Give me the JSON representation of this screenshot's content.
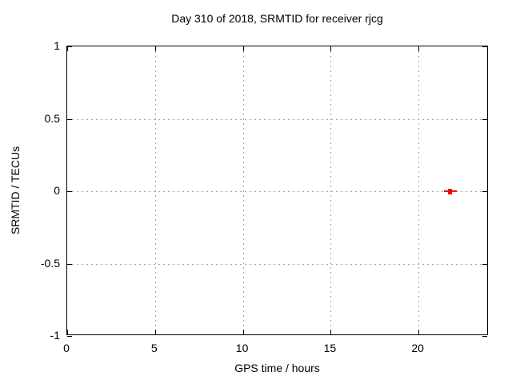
{
  "chart_data": {
    "type": "scatter",
    "title": "Day 310 of 2018, SRMTID for receiver rjcg",
    "xlabel": "GPS time / hours",
    "ylabel": "SRMTID / TECUs",
    "xlim": [
      0,
      24
    ],
    "ylim": [
      -1,
      1
    ],
    "x_ticks": [
      0,
      5,
      10,
      15,
      20
    ],
    "x_tick_labels": [
      "0",
      "5",
      "10",
      "15",
      "20"
    ],
    "y_ticks": [
      1,
      0.5,
      0,
      -0.5,
      -1
    ],
    "y_tick_labels": [
      "1",
      "0.5",
      "0",
      "-0.5",
      "-1"
    ],
    "grid": true,
    "legend_position": "none",
    "series": [
      {
        "name": "SRMTID",
        "marker": "filled-square-with-horizontal-bar",
        "color": "#ff0000",
        "points": [
          {
            "x": 21.8,
            "y": 0.0
          }
        ]
      }
    ],
    "colors": {
      "marker": "#ff0000",
      "grid": "#a8a8a8",
      "axis": "#000000",
      "text": "#000000",
      "background": "#ffffff"
    }
  }
}
